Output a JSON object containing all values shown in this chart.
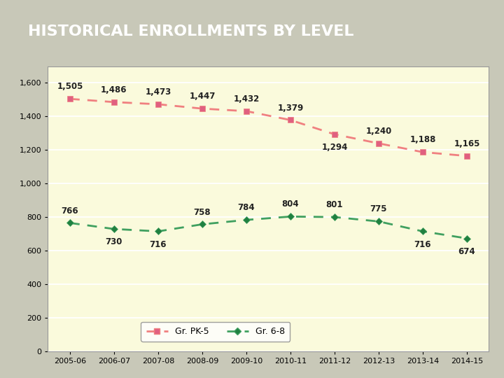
{
  "title": "HISTORICAL ENROLLMENTS BY LEVEL",
  "title_bg_color": "#5c5252",
  "title_text_color": "#ffffff",
  "chart_bg_color": "#fafadc",
  "outer_bg_color": "#c8c8b8",
  "categories": [
    "2005-06",
    "2006-07",
    "2007-08",
    "2008-09",
    "2009-10",
    "2010-11",
    "2011-12",
    "2012-13",
    "2013-14",
    "2014-15"
  ],
  "pk5_values": [
    1505,
    1486,
    1473,
    1447,
    1432,
    1379,
    1294,
    1240,
    1188,
    1165
  ],
  "gr68_values": [
    766,
    730,
    716,
    758,
    784,
    804,
    801,
    775,
    716,
    674
  ],
  "pk5_line_color": "#f08080",
  "pk5_marker_color": "#e06080",
  "gr68_line_color": "#40a060",
  "gr68_marker_color": "#208040",
  "ylim": [
    0,
    1700
  ],
  "yticks": [
    0,
    200,
    400,
    600,
    800,
    1000,
    1200,
    1400,
    1600
  ],
  "legend_labels": [
    "Gr. PK-5",
    "Gr. 6-8"
  ],
  "annotation_fontsize": 8.5,
  "axis_label_fontsize": 8
}
